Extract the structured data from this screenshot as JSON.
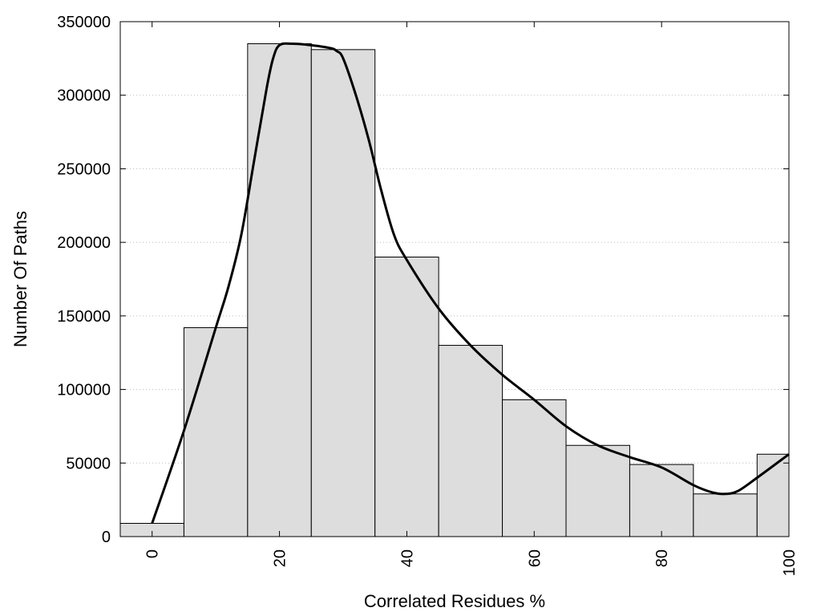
{
  "chart_data": {
    "type": "bar",
    "title": "",
    "xlabel": "Correlated Residues %",
    "ylabel": "Number Of Paths",
    "xlim": [
      -5,
      100
    ],
    "ylim": [
      0,
      350000
    ],
    "grid": {
      "y": true,
      "x": false
    },
    "x_ticks": [
      0,
      20,
      40,
      60,
      80,
      100
    ],
    "x_tick_labels": [
      "0",
      "20",
      "40",
      "60",
      "80",
      "100"
    ],
    "y_ticks": [
      0,
      50000,
      100000,
      150000,
      200000,
      250000,
      300000,
      350000
    ],
    "y_tick_labels": [
      "0",
      "50000",
      "100000",
      "150000",
      "200000",
      "250000",
      "300000",
      "350000"
    ],
    "bin_width": 10,
    "bar_color": "#dddddd",
    "bars": [
      {
        "x": 0,
        "value": 9000
      },
      {
        "x": 10,
        "value": 142000
      },
      {
        "x": 20,
        "value": 335000
      },
      {
        "x": 30,
        "value": 331000
      },
      {
        "x": 40,
        "value": 190000
      },
      {
        "x": 50,
        "value": 130000
      },
      {
        "x": 60,
        "value": 93000
      },
      {
        "x": 70,
        "value": 62000
      },
      {
        "x": 80,
        "value": 49000
      },
      {
        "x": 90,
        "value": 29000
      },
      {
        "x": 100,
        "value": 56000
      }
    ],
    "curve": {
      "color": "#000000",
      "x": [
        0,
        5,
        10,
        12,
        14,
        16,
        18,
        19,
        20,
        22,
        25,
        28,
        29,
        30,
        32,
        34,
        36,
        38,
        40,
        45,
        50,
        55,
        60,
        65,
        70,
        75,
        80,
        85,
        88,
        90,
        92,
        95,
        100
      ],
      "y": [
        9000,
        72000,
        142000,
        170000,
        205000,
        255000,
        305000,
        325000,
        334000,
        335000,
        334000,
        332000,
        330000,
        325000,
        300000,
        270000,
        235000,
        205000,
        188000,
        155000,
        130000,
        110000,
        93000,
        75000,
        62000,
        54000,
        47000,
        35000,
        30000,
        29000,
        31000,
        40000,
        56000
      ]
    }
  }
}
